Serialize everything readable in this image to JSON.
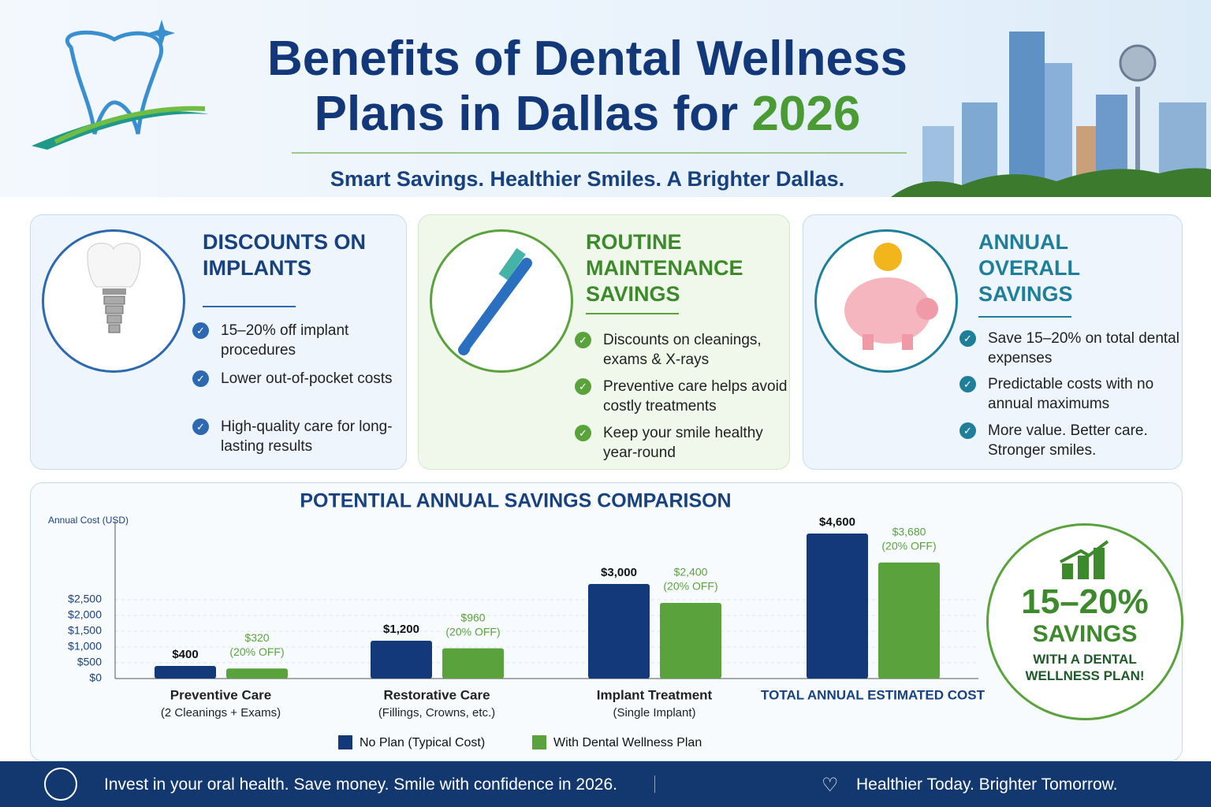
{
  "header": {
    "title_line1": "Benefits of Dental Wellness",
    "title_line2": "Plans in Dallas for",
    "title_year": "2026",
    "subtitle": "Smart Savings. Healthier Smiles. A Brighter Dallas."
  },
  "cards": [
    {
      "title": "DISCOUNTS ON IMPLANTS",
      "bullets": [
        "15–20% off implant procedures",
        "Lower out-of-pocket costs",
        "High-quality care for long-lasting results"
      ]
    },
    {
      "title": "ROUTINE MAINTENANCE SAVINGS",
      "bullets": [
        "Discounts on cleanings, exams & X-rays",
        "Preventive care helps avoid costly treatments",
        "Keep your smile healthy year-round"
      ]
    },
    {
      "title": "ANNUAL OVERALL SAVINGS",
      "bullets": [
        "Save 15–20% on total dental expenses",
        "Predictable costs with no annual maximums",
        "More value. Better care. Stronger smiles."
      ]
    }
  ],
  "chart_data": {
    "type": "bar",
    "title": "POTENTIAL ANNUAL SAVINGS COMPARISON",
    "y_label": "Annual Cost (USD)",
    "categories": [
      "Preventive Care",
      "Restorative Care",
      "Implant Treatment",
      "TOTAL ANNUAL ESTIMATED COST"
    ],
    "subcategories": [
      "(2 Cleanings + Exams)",
      "(Fillings, Crowns, etc.)",
      "(Single Implant)",
      null
    ],
    "series": [
      {
        "name": "No Plan (Typical Cost)",
        "color": "#14397a",
        "values": [
          400,
          1200,
          3000,
          4600
        ],
        "value_labels": [
          "$400",
          "$1,200",
          "$3,000",
          "$4,600"
        ]
      },
      {
        "name": "With Dental Wellness Plan",
        "color": "#5aa23c",
        "values": [
          320,
          960,
          2400,
          3680
        ],
        "value_labels": [
          "$320",
          "$960",
          "$2,400",
          "$3,680"
        ],
        "notes": [
          "(20% OFF)",
          "(20% OFF)",
          "(20% OFF)",
          "(20% OFF)"
        ]
      }
    ],
    "ylim": [
      0,
      5000
    ],
    "yticks": [
      {
        "value": 0,
        "label": "$0"
      },
      {
        "value": 500,
        "label": "$500"
      },
      {
        "value": 1000,
        "label": "$1,000"
      },
      {
        "value": 1500,
        "label": "$1,500"
      },
      {
        "value": 2000,
        "label": "$2,000"
      },
      {
        "value": 2500,
        "label": "$2,500"
      }
    ],
    "grid": true,
    "legend": "bottom"
  },
  "badge": {
    "headline": "15–20%",
    "line": "SAVINGS",
    "sub": "WITH A DENTAL WELLNESS PLAN!"
  },
  "footer": {
    "message": "Invest in your oral health. Save money. Smile with confidence in 2026.",
    "tagline": "Healthier Today. Brighter Tomorrow."
  }
}
